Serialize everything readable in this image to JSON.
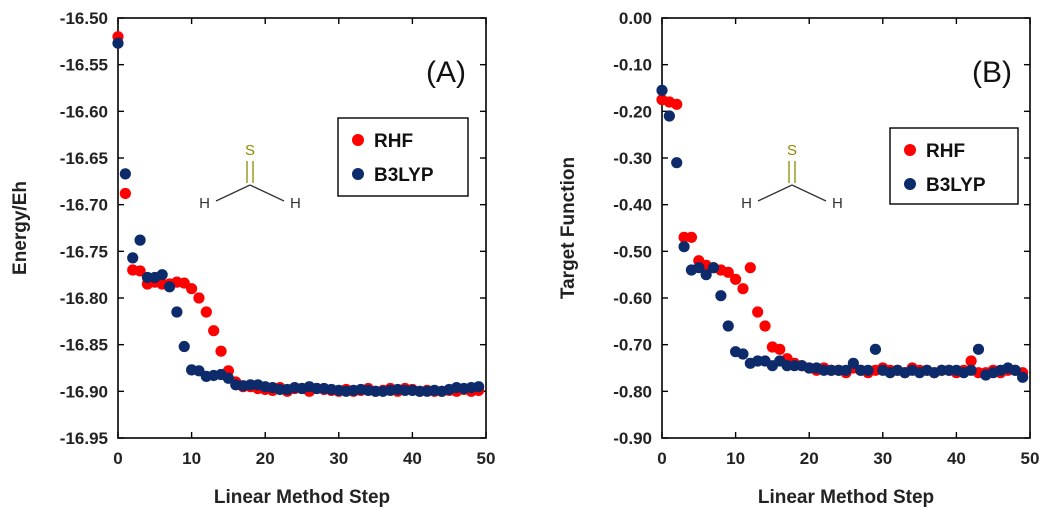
{
  "chart_data": [
    {
      "type": "scatter",
      "panel_label": "(A)",
      "xlabel": "Linear Method Step",
      "ylabel": "Energy/Eh",
      "xlim": [
        0,
        50
      ],
      "ylim": [
        -16.95,
        -16.5
      ],
      "x_ticks": [
        0,
        10,
        20,
        30,
        40,
        50
      ],
      "x_tick_labels": [
        "0",
        "10",
        "20",
        "30",
        "40",
        "50"
      ],
      "y_ticks": [
        -16.5,
        -16.55,
        -16.6,
        -16.65,
        -16.7,
        -16.75,
        -16.8,
        -16.85,
        -16.9,
        -16.95
      ],
      "y_tick_labels": [
        "-16.50",
        "-16.55",
        "-16.60",
        "-16.65",
        "-16.70",
        "-16.75",
        "-16.80",
        "-16.85",
        "-16.90",
        "-16.95"
      ],
      "grid": false,
      "legend_position": "upper-right",
      "molecule_atoms": [
        "S",
        "H",
        "H"
      ],
      "series": [
        {
          "name": "RHF",
          "color": "#ff0000",
          "x": [
            0,
            1,
            2,
            3,
            4,
            5,
            6,
            7,
            8,
            9,
            10,
            11,
            12,
            13,
            14,
            15,
            16,
            17,
            18,
            19,
            20,
            21,
            22,
            23,
            24,
            25,
            26,
            27,
            28,
            29,
            30,
            31,
            32,
            33,
            34,
            35,
            36,
            37,
            38,
            39,
            40,
            41,
            42,
            43,
            44,
            45,
            46,
            47,
            48,
            49
          ],
          "y": [
            -16.52,
            -16.688,
            -16.77,
            -16.771,
            -16.785,
            -16.783,
            -16.785,
            -16.785,
            -16.783,
            -16.784,
            -16.79,
            -16.8,
            -16.815,
            -16.835,
            -16.857,
            -16.878,
            -16.89,
            -16.895,
            -16.895,
            -16.897,
            -16.898,
            -16.899,
            -16.896,
            -16.9,
            -16.897,
            -16.897,
            -16.9,
            -16.897,
            -16.898,
            -16.899,
            -16.9,
            -16.898,
            -16.9,
            -16.899,
            -16.897,
            -16.9,
            -16.899,
            -16.897,
            -16.9,
            -16.897,
            -16.898,
            -16.9,
            -16.899,
            -16.9,
            -16.9,
            -16.899,
            -16.9,
            -16.898,
            -16.9,
            -16.899
          ]
        },
        {
          "name": "B3LYP",
          "color": "#0d2b6b",
          "x": [
            0,
            1,
            2,
            3,
            4,
            5,
            6,
            7,
            8,
            9,
            10,
            11,
            12,
            13,
            14,
            15,
            16,
            17,
            18,
            19,
            20,
            21,
            22,
            23,
            24,
            25,
            26,
            27,
            28,
            29,
            30,
            31,
            32,
            33,
            34,
            35,
            36,
            37,
            38,
            39,
            40,
            41,
            42,
            43,
            44,
            45,
            46,
            47,
            48,
            49
          ],
          "y": [
            -16.527,
            -16.667,
            -16.757,
            -16.738,
            -16.778,
            -16.778,
            -16.775,
            -16.788,
            -16.815,
            -16.852,
            -16.877,
            -16.878,
            -16.884,
            -16.883,
            -16.882,
            -16.886,
            -16.893,
            -16.894,
            -16.893,
            -16.893,
            -16.895,
            -16.896,
            -16.898,
            -16.898,
            -16.896,
            -16.897,
            -16.895,
            -16.897,
            -16.897,
            -16.898,
            -16.899,
            -16.9,
            -16.899,
            -16.898,
            -16.899,
            -16.9,
            -16.9,
            -16.899,
            -16.898,
            -16.899,
            -16.899,
            -16.9,
            -16.9,
            -16.899,
            -16.9,
            -16.898,
            -16.896,
            -16.897,
            -16.896,
            -16.895
          ]
        }
      ]
    },
    {
      "type": "scatter",
      "panel_label": "(B)",
      "xlabel": "Linear Method Step",
      "ylabel": "Target Function",
      "xlim": [
        0,
        50
      ],
      "ylim": [
        -0.9,
        0.0
      ],
      "x_ticks": [
        0,
        10,
        20,
        30,
        40,
        50
      ],
      "x_tick_labels": [
        "0",
        "10",
        "20",
        "30",
        "40",
        "50"
      ],
      "y_ticks": [
        0.0,
        -0.1,
        -0.2,
        -0.3,
        -0.4,
        -0.5,
        -0.6,
        -0.7,
        -0.8,
        -0.9
      ],
      "y_tick_labels": [
        "0.00",
        "-0.10",
        "-0.20",
        "-0.30",
        "-0.40",
        "-0.50",
        "-0.60",
        "-0.70",
        "-0.80",
        "-0.90"
      ],
      "grid": false,
      "legend_position": "upper-right",
      "molecule_atoms": [
        "S",
        "H",
        "H"
      ],
      "series": [
        {
          "name": "RHF",
          "color": "#ff0000",
          "x": [
            0,
            1,
            2,
            3,
            4,
            5,
            6,
            7,
            8,
            9,
            10,
            11,
            12,
            13,
            14,
            15,
            16,
            17,
            18,
            19,
            20,
            21,
            22,
            23,
            24,
            25,
            26,
            27,
            28,
            29,
            30,
            31,
            32,
            33,
            34,
            35,
            36,
            37,
            38,
            39,
            40,
            41,
            42,
            43,
            44,
            45,
            46,
            47,
            48,
            49
          ],
          "y": [
            -0.175,
            -0.18,
            -0.185,
            -0.47,
            -0.47,
            -0.52,
            -0.53,
            -0.535,
            -0.54,
            -0.545,
            -0.56,
            -0.58,
            -0.535,
            -0.63,
            -0.66,
            -0.705,
            -0.71,
            -0.73,
            -0.74,
            -0.745,
            -0.75,
            -0.755,
            -0.75,
            -0.755,
            -0.755,
            -0.76,
            -0.75,
            -0.755,
            -0.76,
            -0.755,
            -0.75,
            -0.755,
            -0.755,
            -0.76,
            -0.75,
            -0.755,
            -0.755,
            -0.76,
            -0.755,
            -0.755,
            -0.76,
            -0.755,
            -0.735,
            -0.76,
            -0.76,
            -0.755,
            -0.76,
            -0.755,
            -0.755,
            -0.76
          ]
        },
        {
          "name": "B3LYP",
          "color": "#0d2b6b",
          "x": [
            0,
            1,
            2,
            3,
            4,
            5,
            6,
            7,
            8,
            9,
            10,
            11,
            12,
            13,
            14,
            15,
            16,
            17,
            18,
            19,
            20,
            21,
            22,
            23,
            24,
            25,
            26,
            27,
            28,
            29,
            30,
            31,
            32,
            33,
            34,
            35,
            36,
            37,
            38,
            39,
            40,
            41,
            42,
            43,
            44,
            45,
            46,
            47,
            48,
            49
          ],
          "y": [
            -0.155,
            -0.21,
            -0.31,
            -0.49,
            -0.54,
            -0.535,
            -0.55,
            -0.535,
            -0.595,
            -0.66,
            -0.715,
            -0.72,
            -0.74,
            -0.735,
            -0.735,
            -0.745,
            -0.735,
            -0.745,
            -0.745,
            -0.745,
            -0.75,
            -0.75,
            -0.755,
            -0.755,
            -0.755,
            -0.755,
            -0.74,
            -0.755,
            -0.755,
            -0.71,
            -0.755,
            -0.76,
            -0.755,
            -0.76,
            -0.755,
            -0.76,
            -0.755,
            -0.76,
            -0.755,
            -0.755,
            -0.755,
            -0.76,
            -0.755,
            -0.71,
            -0.765,
            -0.76,
            -0.755,
            -0.75,
            -0.755,
            -0.77
          ]
        }
      ]
    }
  ]
}
